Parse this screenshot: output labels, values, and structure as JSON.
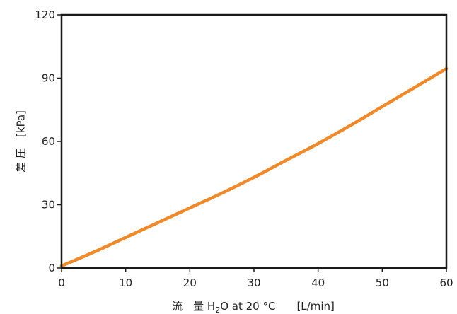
{
  "chart_data": {
    "type": "line",
    "title": "",
    "xlabel": {
      "prefix": "流　量 H",
      "subscript": "2",
      "suffix": "O at 20 °C　　[L/min]"
    },
    "ylabel": "差 圧　[kPa]",
    "xlim": [
      0,
      60
    ],
    "ylim": [
      0,
      120
    ],
    "x_ticks": [
      0,
      10,
      20,
      30,
      40,
      50,
      60
    ],
    "y_ticks": [
      0,
      30,
      60,
      90,
      120
    ],
    "grid": false,
    "line_color": "#ee8a2c",
    "series": [
      {
        "x": [
          0,
          5,
          10,
          15,
          20,
          25,
          30,
          35,
          40,
          45,
          50,
          55,
          60
        ],
        "y": [
          1,
          7.5,
          14.5,
          21.5,
          28.5,
          35.5,
          43,
          51,
          59,
          67.5,
          76.5,
          85.5,
          94.5
        ]
      }
    ]
  }
}
